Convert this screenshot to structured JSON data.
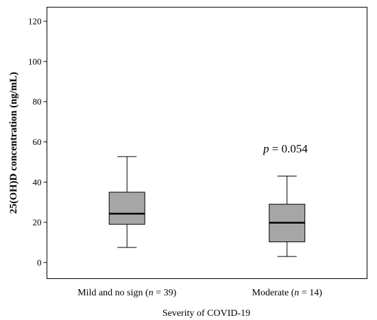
{
  "chart_data": {
    "type": "box",
    "xlabel": "Severity of COVID-19",
    "ylabel": "25(OH)D concentration (ng/mL)",
    "ylim": [
      -8,
      127
    ],
    "yticks": [
      0,
      20,
      40,
      60,
      80,
      100,
      120
    ],
    "grid": false,
    "categories": [
      {
        "pre": "Mild and no sign (",
        "n_symbol": "n",
        "post": " = 39)"
      },
      {
        "pre": "Moderate (",
        "n_symbol": "n",
        "post": " = 14)"
      }
    ],
    "boxes": [
      {
        "whisker_low": 7.5,
        "q1": 19,
        "median": 24.3,
        "q3": 35,
        "whisker_high": 52.7
      },
      {
        "whisker_low": 3,
        "q1": 10.3,
        "median": 19.8,
        "q3": 29,
        "whisker_high": 43
      }
    ],
    "annotation": {
      "symbol": "p",
      "value": " = 0.054"
    },
    "colors": {
      "box_fill": "#a6a6a6",
      "stroke": "#000000",
      "background": "#ffffff"
    }
  }
}
